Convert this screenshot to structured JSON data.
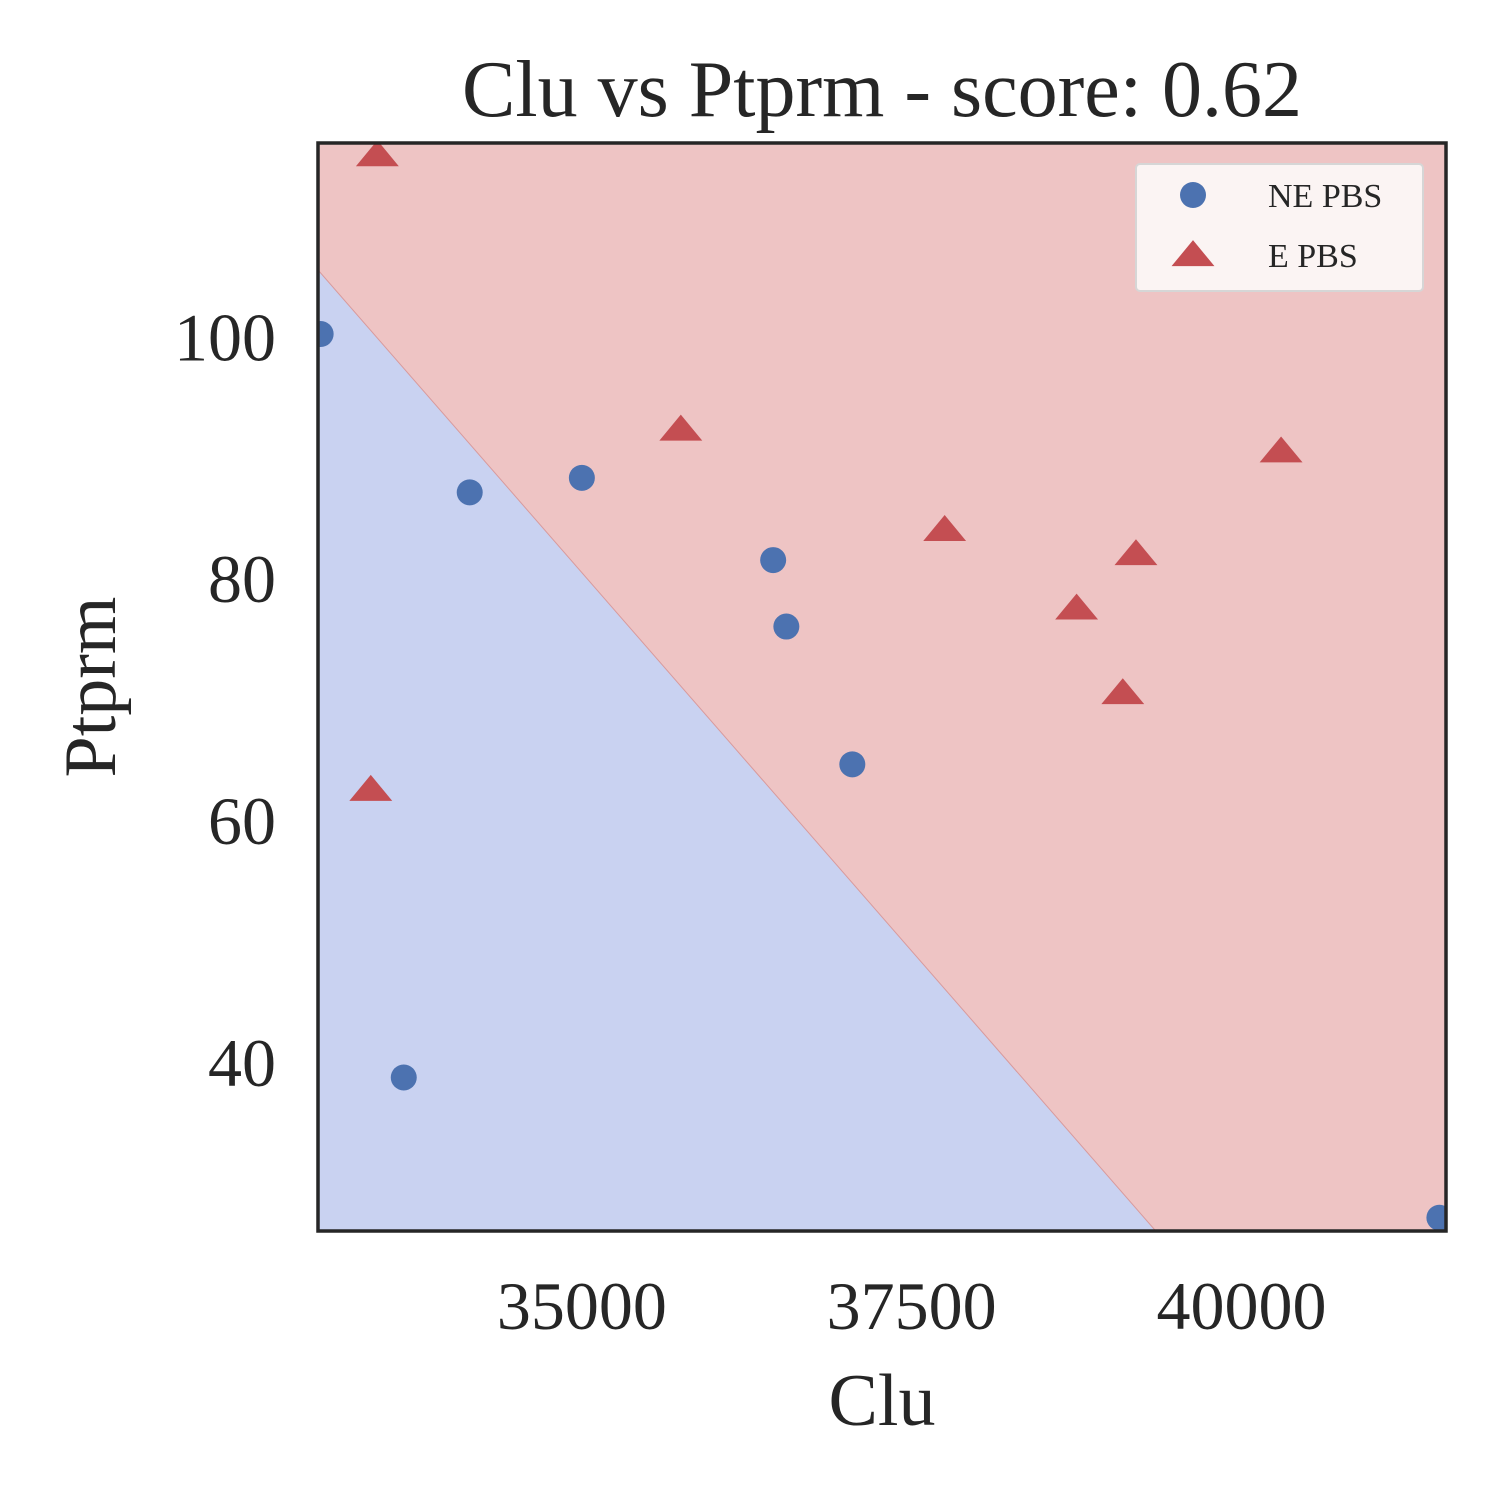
{
  "chart_data": {
    "type": "scatter",
    "title": "Clu vs Ptprm - score: 0.62",
    "xlabel": "Clu",
    "ylabel": "Ptprm",
    "xlim": [
      33000,
      41550
    ],
    "ylim": [
      26,
      116
    ],
    "xticks": [
      35000,
      37500,
      40000
    ],
    "yticks": [
      40,
      60,
      80,
      100
    ],
    "legend_position": "top-right",
    "grid": false,
    "decision_boundary": {
      "points": [
        [
          33000,
          105.5
        ],
        [
          39350,
          26
        ]
      ],
      "lower_left_region_color": "#c9d2f1",
      "upper_right_region_color": "#eec4c4"
    },
    "series": [
      {
        "name": "NE PBS",
        "marker": "circle",
        "color": "#4c72b0",
        "points": [
          [
            33020,
            100.2
          ],
          [
            34150,
            87.1
          ],
          [
            35000,
            88.3
          ],
          [
            36450,
            81.5
          ],
          [
            36550,
            76.0
          ],
          [
            37050,
            64.6
          ],
          [
            33650,
            38.7
          ],
          [
            41500,
            27.1
          ]
        ]
      },
      {
        "name": "E PBS",
        "marker": "triangle",
        "color": "#c44e52",
        "points": [
          [
            33450,
            115.0
          ],
          [
            35750,
            92.3
          ],
          [
            37750,
            84.0
          ],
          [
            39200,
            82.0
          ],
          [
            38750,
            77.5
          ],
          [
            39100,
            70.5
          ],
          [
            40300,
            90.5
          ],
          [
            33400,
            62.5
          ]
        ]
      }
    ]
  }
}
